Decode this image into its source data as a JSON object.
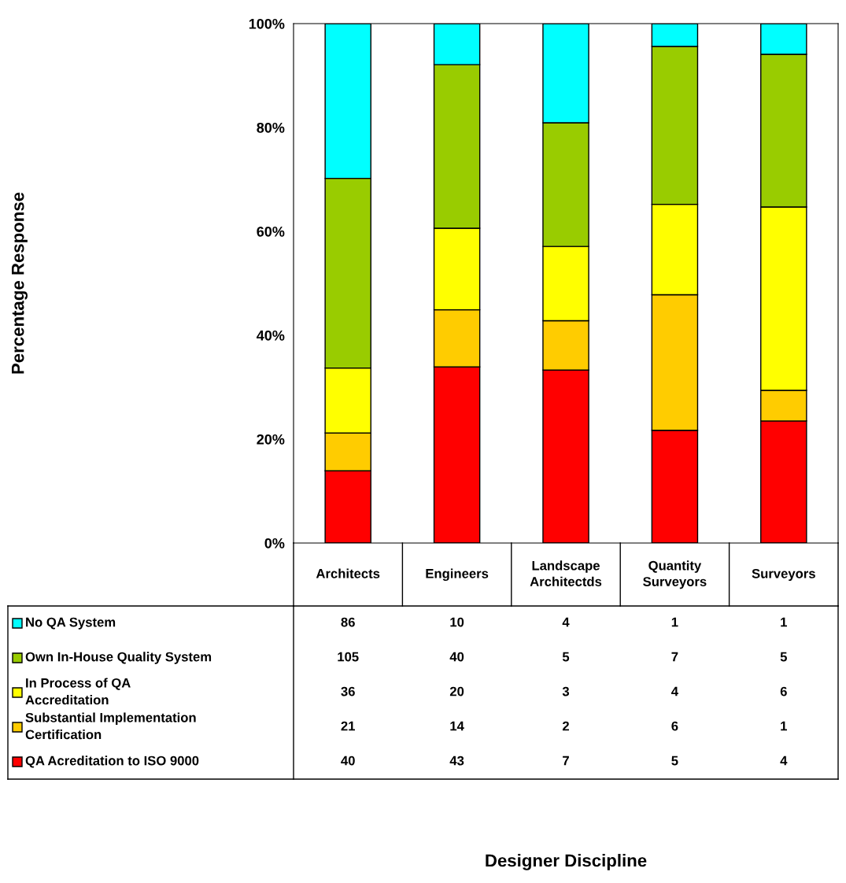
{
  "chart_data": [
    {
      "type": "bar",
      "stacked": true,
      "xlabel": "Designer Discipline",
      "ylabel": "Percentage Response",
      "categories": [
        "Architects",
        "Engineers",
        "Landscape\nArchitectds",
        "Quantity\nSurveyors",
        "Surveyors"
      ],
      "series": [
        {
          "name": "QA Acreditation to ISO 9000",
          "color": "#ff0000",
          "values": [
            13.9,
            33.9,
            33.3,
            21.7,
            23.5
          ]
        },
        {
          "name": "Substantial Implementation\nCertification",
          "color": "#ffcc00",
          "values": [
            7.3,
            11.0,
            9.5,
            26.1,
            5.9
          ]
        },
        {
          "name": "In Process of QA\nAccreditation",
          "color": "#ffff00",
          "values": [
            12.5,
            15.7,
            14.3,
            17.4,
            35.3
          ]
        },
        {
          "name": "Own In-House Quality System",
          "color": "#99cc00",
          "values": [
            36.5,
            31.5,
            23.8,
            30.4,
            29.4
          ]
        },
        {
          "name": "No QA System",
          "color": "#00ffff",
          "values": [
            29.8,
            7.9,
            19.1,
            4.4,
            5.9
          ]
        }
      ],
      "ylim": [
        0,
        100
      ],
      "yticks": [
        {
          "value": 0,
          "label": "0%"
        },
        {
          "value": 20,
          "label": "20%"
        },
        {
          "value": 40,
          "label": "40%"
        },
        {
          "value": 60,
          "label": "60%"
        },
        {
          "value": 80,
          "label": "80%"
        },
        {
          "value": 100,
          "label": "100%"
        }
      ],
      "grid": false,
      "legend": "bottom"
    },
    {
      "type": "heatmap",
      "data_labels": true,
      "categories": [
        null,
        null,
        null,
        null,
        null
      ],
      "y_categories": [
        null,
        null,
        null,
        null,
        null
      ],
      "cells": [
        [
          86,
          10,
          4,
          1,
          1
        ],
        [
          105,
          40,
          5,
          7,
          5
        ],
        [
          36,
          20,
          3,
          4,
          6
        ],
        [
          21,
          14,
          2,
          6,
          1
        ],
        [
          40,
          43,
          7,
          5,
          4
        ]
      ]
    }
  ]
}
